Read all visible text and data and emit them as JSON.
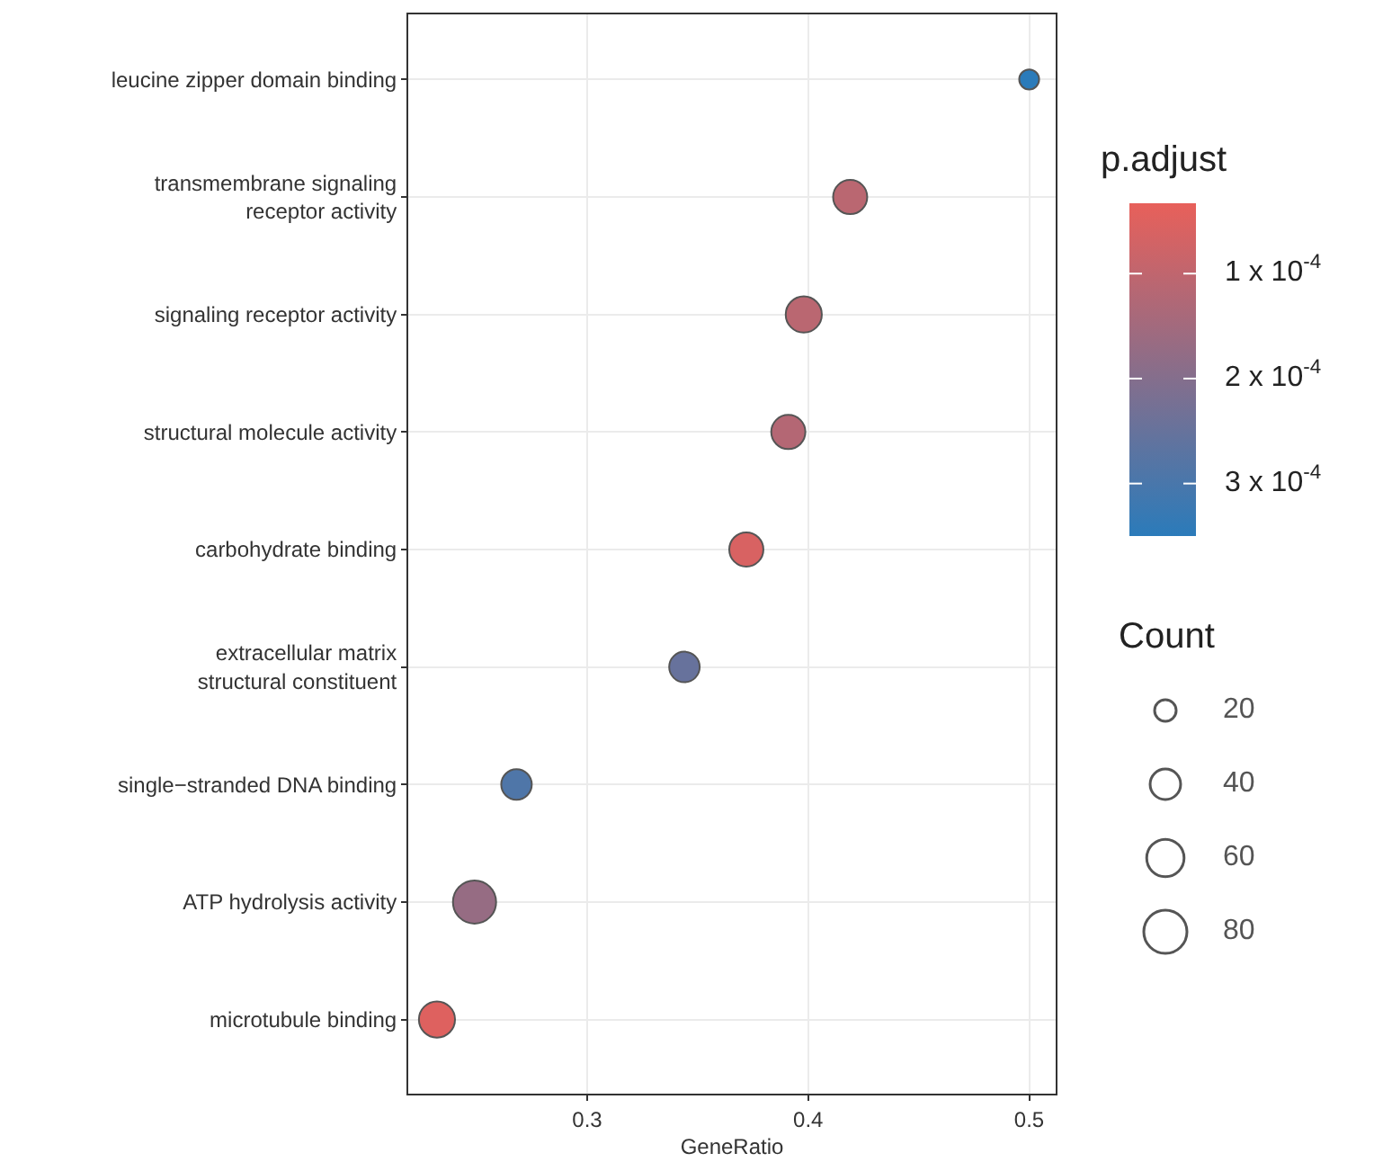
{
  "chart_data": {
    "type": "bubble",
    "orientation": "horizontal",
    "xlabel": "GeneRatio",
    "legend_title": "Count",
    "clabel": "p.adjust",
    "categories": [
      "leucine zipper domain binding",
      "transmembrane signaling\nreceptor activity",
      "signaling receptor activity",
      "structural molecule activity",
      "carbohydrate binding",
      "extracellular matrix\nstructural constituent",
      "single−stranded DNA binding",
      "ATP hydrolysis activity",
      "microtubule binding"
    ],
    "values": [
      0.5,
      0.419,
      0.398,
      0.391,
      0.372,
      0.344,
      0.268,
      0.249,
      0.232
    ],
    "sizes": [
      17,
      50,
      56,
      50,
      50,
      40,
      40,
      80,
      56
    ],
    "cvalues": [
      0.00035,
      0.00011,
      0.00011,
      0.00012,
      6e-05,
      0.00025,
      0.00029,
      0.00017,
      5e-05
    ],
    "size_legend": [
      20,
      40,
      60,
      80
    ],
    "clim": [
      3.3e-05,
      0.00035
    ],
    "cticks": [
      {
        "value": 0.0001,
        "label": "1 x 10$^{-4}$"
      },
      {
        "value": 0.0002,
        "label": "2 x 10$^{-4}$"
      },
      {
        "value": 0.0003,
        "label": "3 x 10$^{-4}$"
      }
    ],
    "xlim": [
      0.219,
      0.512
    ],
    "xticks": [
      0.3,
      0.4,
      0.5
    ],
    "grid": true,
    "marker": "circle"
  }
}
